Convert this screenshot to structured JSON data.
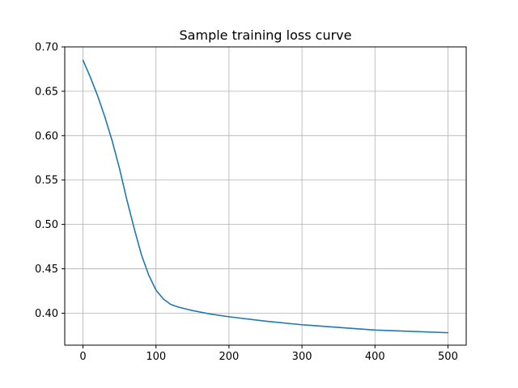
{
  "chart_data": {
    "type": "line",
    "title": "Sample training loss curve",
    "xlabel": "",
    "ylabel": "",
    "xlim": [
      -25,
      525
    ],
    "ylim": [
      0.364,
      0.7
    ],
    "xticks": [
      0,
      100,
      200,
      300,
      400,
      500
    ],
    "yticks": [
      0.4,
      0.45,
      0.5,
      0.55,
      0.6,
      0.65,
      0.7
    ],
    "grid": true,
    "legend": "none",
    "series": [
      {
        "color": "#1f77b4",
        "x": [
          0,
          10,
          20,
          30,
          40,
          50,
          60,
          70,
          80,
          90,
          100,
          110,
          120,
          130,
          140,
          150,
          175,
          200,
          250,
          300,
          350,
          400,
          450,
          500
        ],
        "y": [
          0.685,
          0.666,
          0.645,
          0.621,
          0.594,
          0.563,
          0.528,
          0.496,
          0.466,
          0.443,
          0.426,
          0.416,
          0.41,
          0.407,
          0.405,
          0.403,
          0.399,
          0.396,
          0.391,
          0.387,
          0.384,
          0.381,
          0.3795,
          0.378
        ]
      }
    ]
  }
}
